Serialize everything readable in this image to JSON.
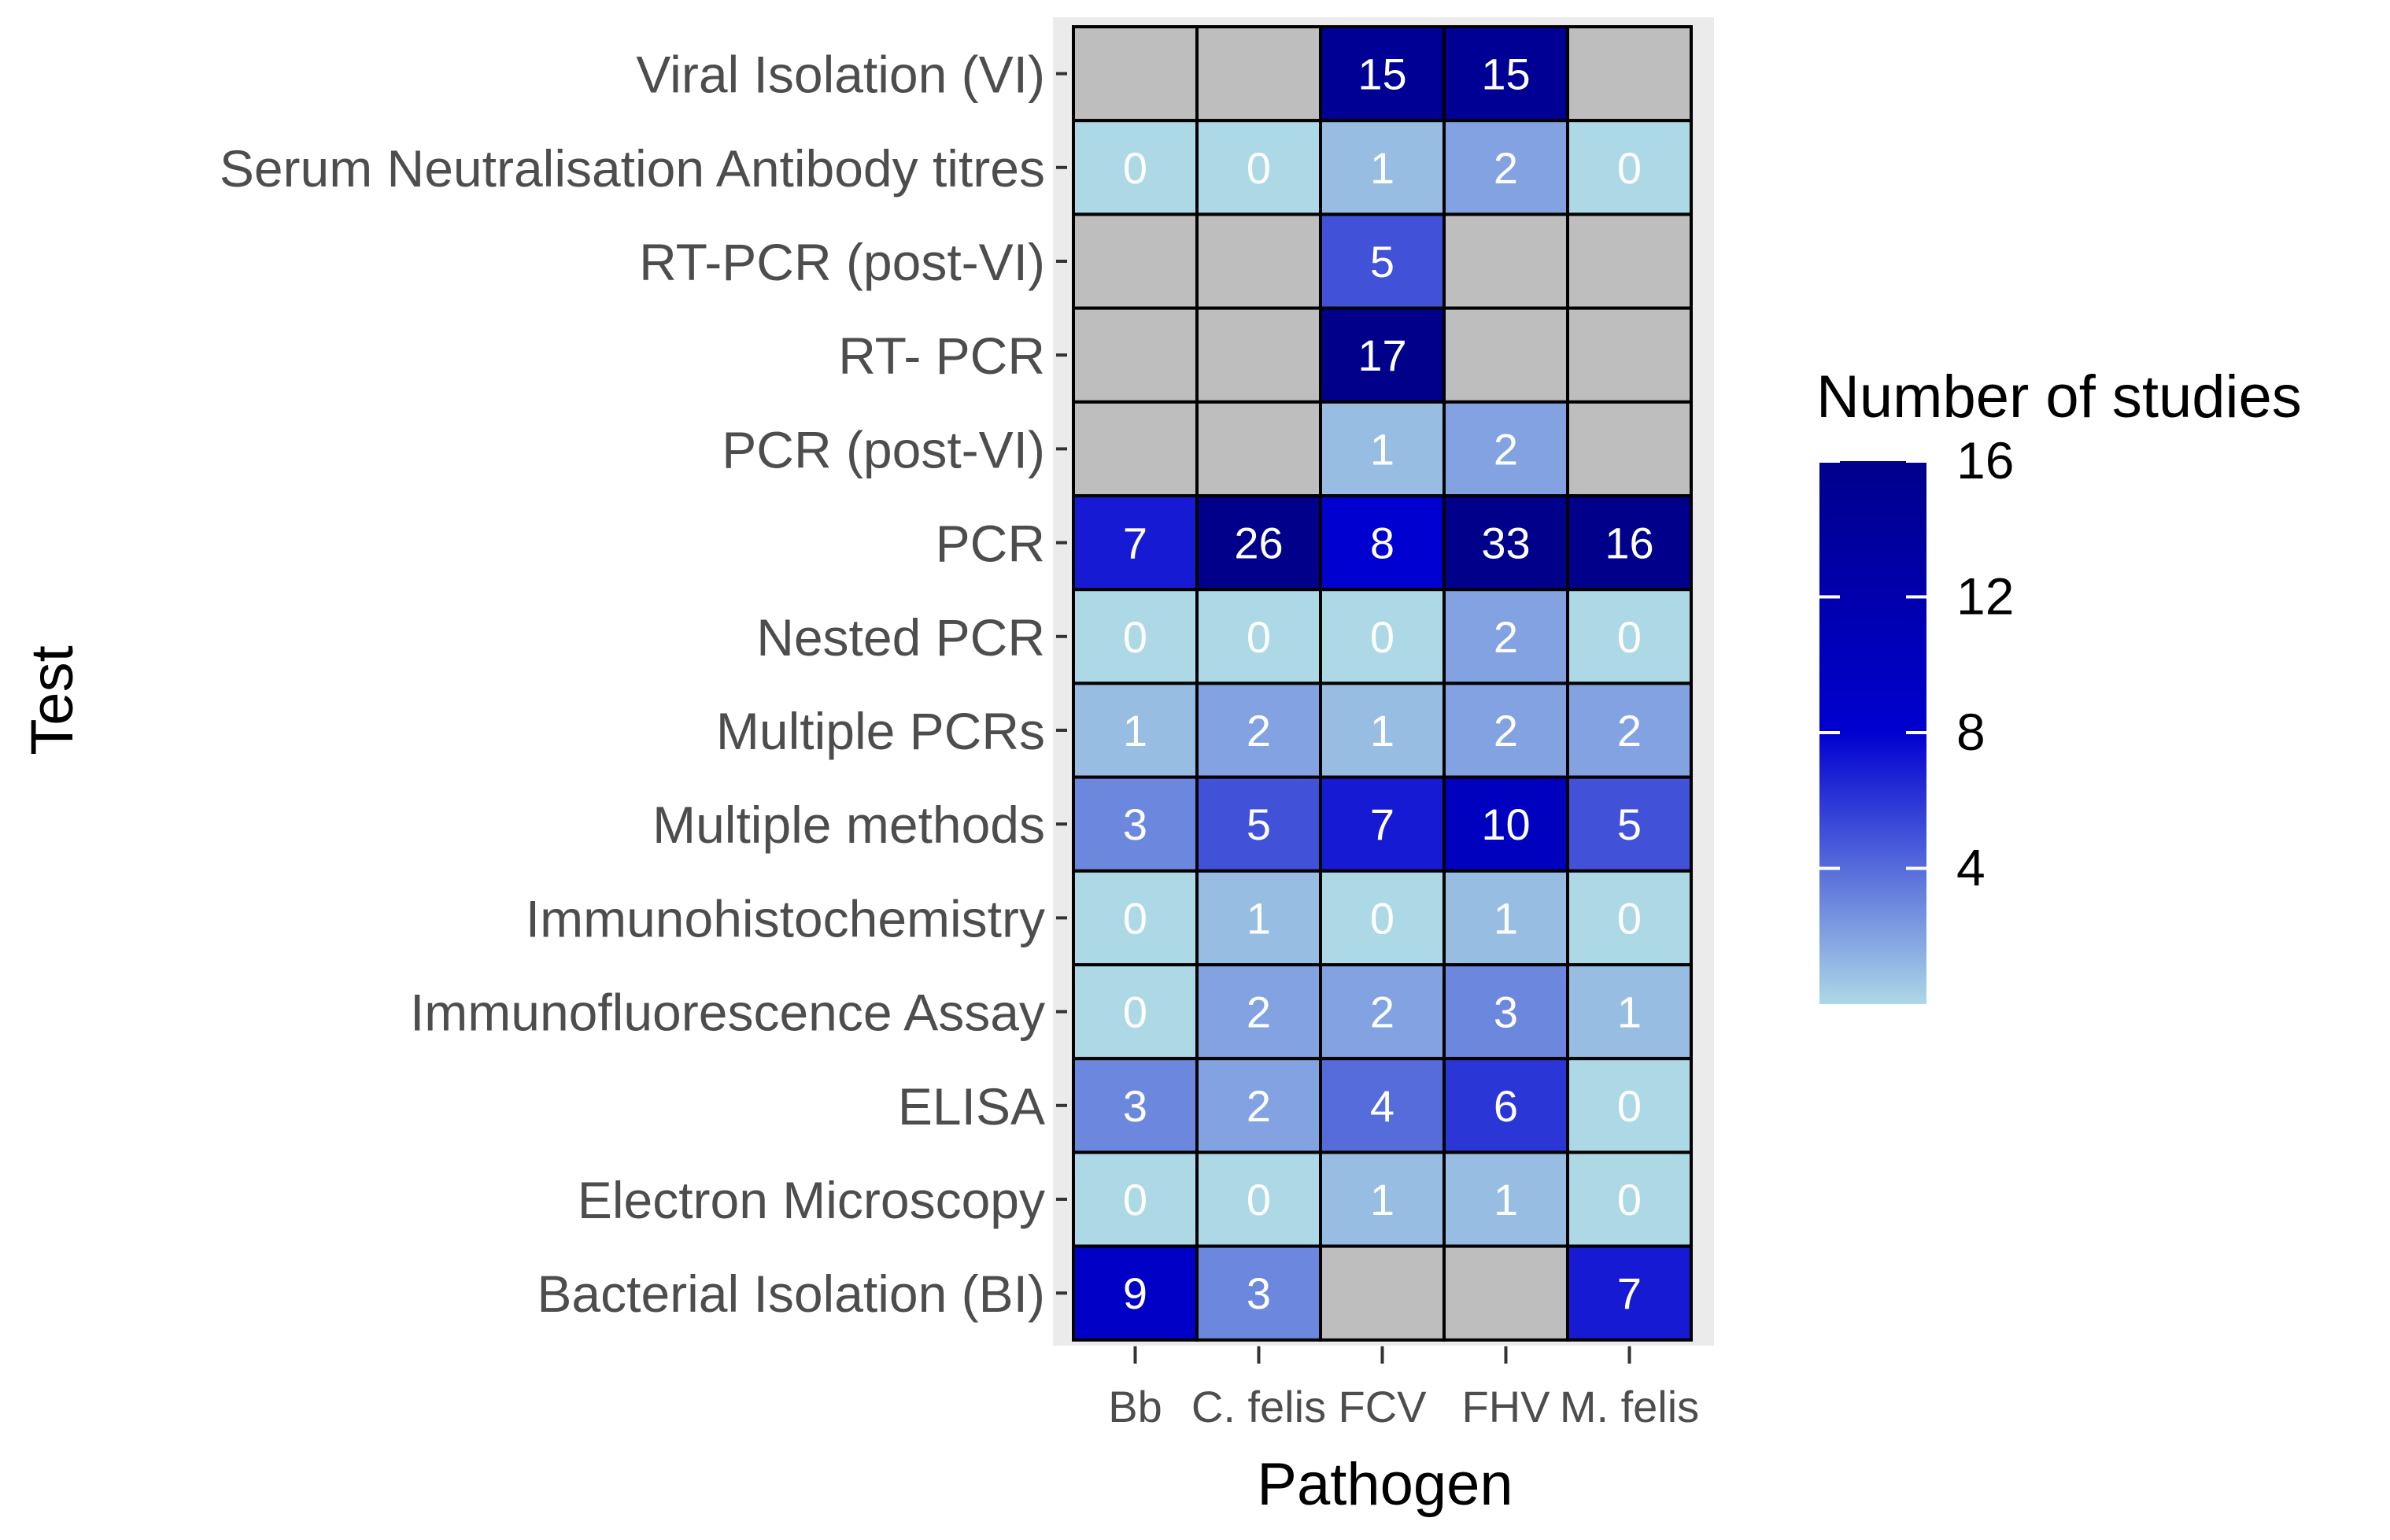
{
  "chart_data": {
    "type": "heatmap",
    "xlabel": "Pathogen",
    "ylabel": "Test",
    "x_categories": [
      "Bb",
      "C. felis",
      "FCV",
      "FHV",
      "M. felis"
    ],
    "y_categories": [
      "Viral Isolation (VI)",
      "Serum Neutralisation Antibody titres",
      "RT-PCR (post-VI)",
      "RT- PCR",
      "PCR (post-VI)",
      "PCR",
      "Nested PCR",
      "Multiple PCRs",
      "Multiple methods",
      "Immunohistochemistry",
      "Immunofluorescence Assay",
      "ELISA",
      "Electron Microscopy",
      "Bacterial Isolation (BI)"
    ],
    "values": [
      [
        null,
        null,
        15,
        15,
        null
      ],
      [
        0,
        0,
        1,
        2,
        0
      ],
      [
        null,
        null,
        5,
        null,
        null
      ],
      [
        null,
        null,
        17,
        null,
        null
      ],
      [
        null,
        null,
        1,
        2,
        null
      ],
      [
        7,
        26,
        8,
        33,
        16
      ],
      [
        0,
        0,
        0,
        2,
        0
      ],
      [
        1,
        2,
        1,
        2,
        2
      ],
      [
        3,
        5,
        7,
        10,
        5
      ],
      [
        0,
        1,
        0,
        1,
        0
      ],
      [
        0,
        2,
        2,
        3,
        1
      ],
      [
        3,
        2,
        4,
        6,
        0
      ],
      [
        0,
        0,
        1,
        1,
        0
      ],
      [
        9,
        3,
        null,
        null,
        7
      ]
    ],
    "legend": {
      "title": "Number of studies",
      "ticks": [
        4,
        8,
        12,
        16
      ],
      "range": [
        0,
        16
      ],
      "position": "right"
    },
    "colors": {
      "low": "#add8e6",
      "mid": "#0000d0",
      "high": "#00008b",
      "na": "#bebebe",
      "panel_bg": "#ebebeb",
      "cell_border": "#000000",
      "cell_text": "#ffffff",
      "axis_text": "#4d4d4d",
      "title_text": "#000000"
    }
  }
}
